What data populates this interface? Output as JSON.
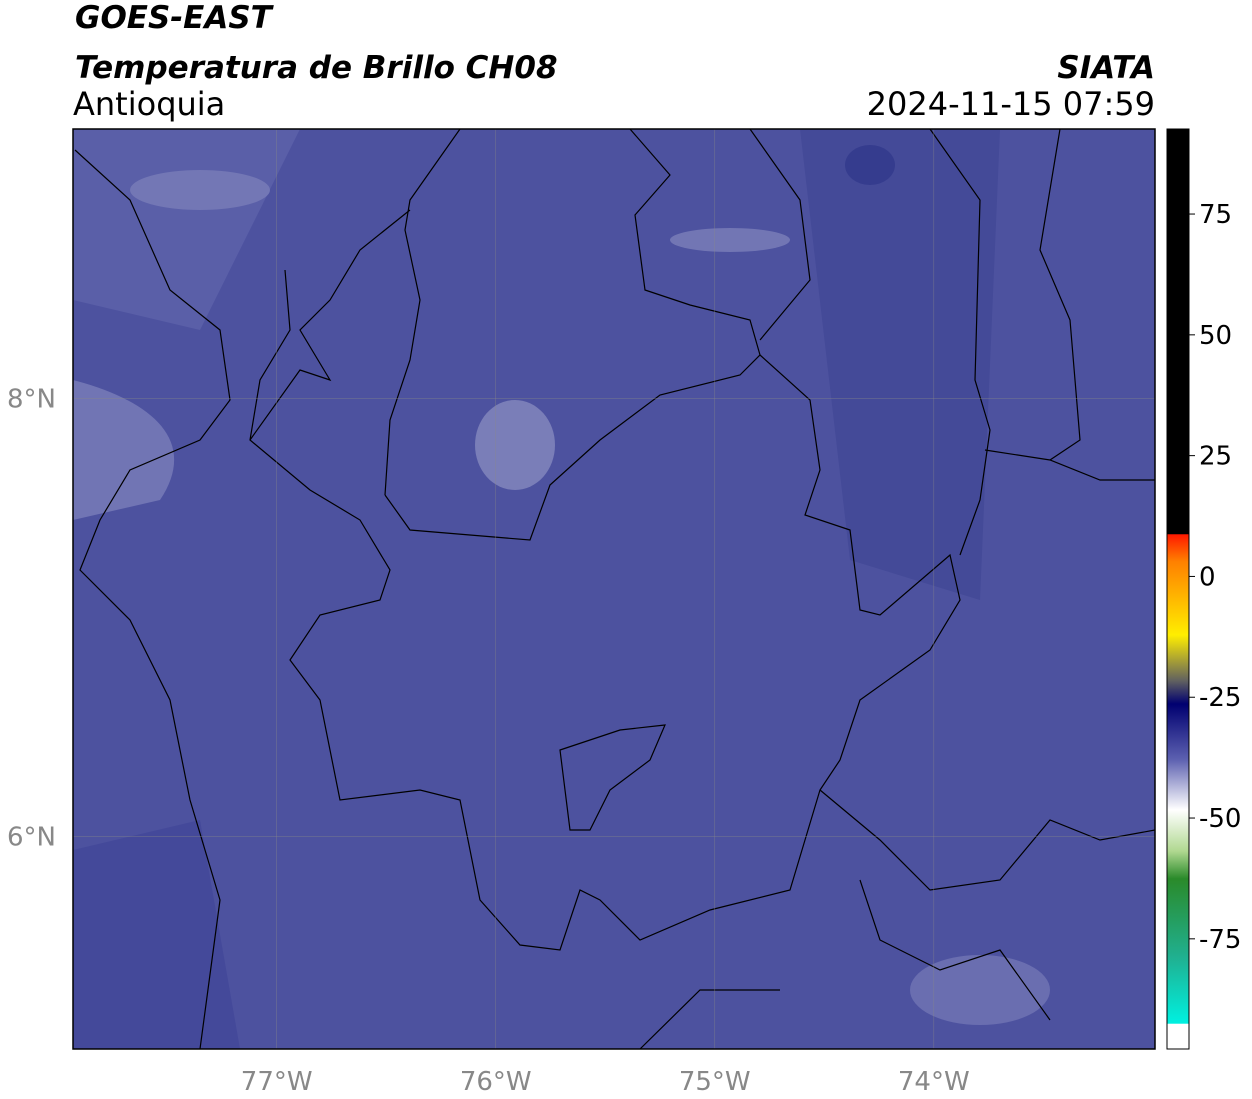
{
  "header": {
    "line1": "GOES-EAST",
    "line2": "Temperatura de Brillo CH08",
    "region": "Antioquia",
    "source": "SIATA",
    "datetime": "2024-11-15 07:59"
  },
  "map": {
    "xlim": [
      -77.93,
      -72.99
    ],
    "ylim": [
      5.03,
      9.23
    ],
    "xticks": [
      {
        "value": -77,
        "label": "77°W"
      },
      {
        "value": -76,
        "label": "76°W"
      },
      {
        "value": -75,
        "label": "75°W"
      },
      {
        "value": -74,
        "label": "74°W"
      }
    ],
    "yticks": [
      {
        "value": 6,
        "label": "6°N"
      },
      {
        "value": 8,
        "label": "8°N"
      }
    ],
    "grid": true
  },
  "colorbar": {
    "lim": [
      -97.8,
      92.6
    ],
    "ticks": [
      75,
      50,
      25,
      0,
      -25,
      -50,
      -75
    ]
  }
}
